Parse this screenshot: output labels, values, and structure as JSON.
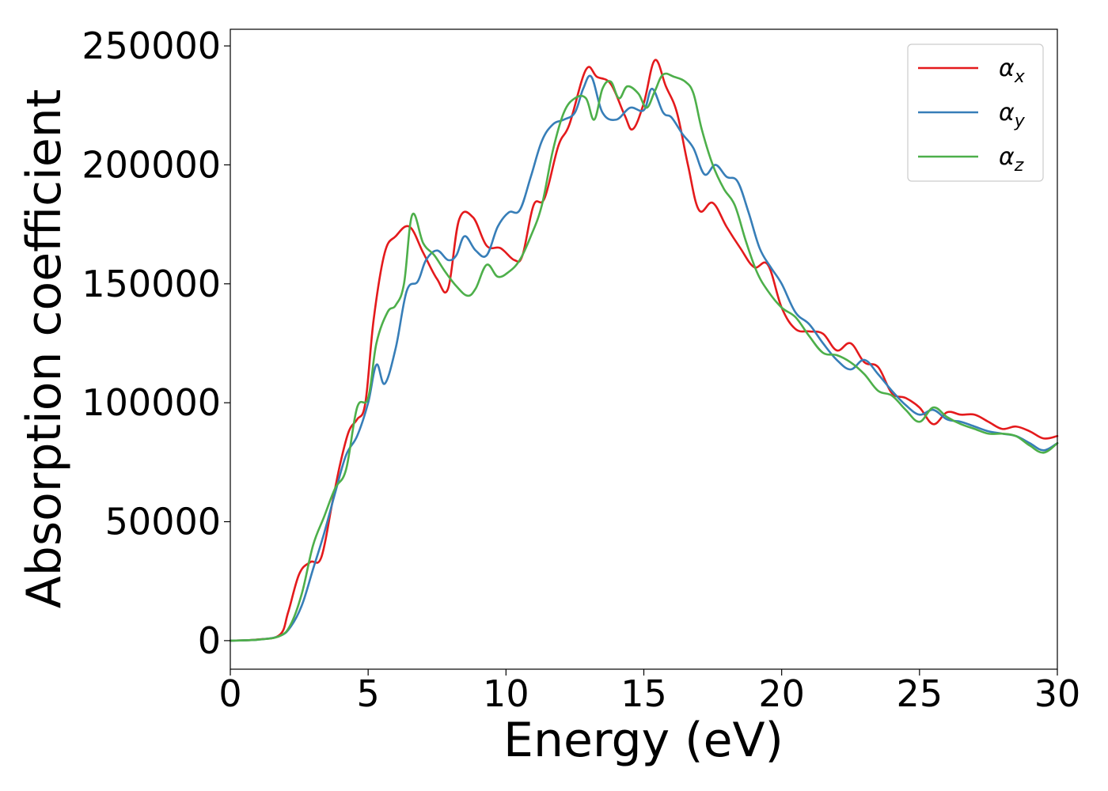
{
  "chart_data": {
    "type": "line",
    "xlabel": "Energy (eV)",
    "ylabel": "Absorption coefficient",
    "xlim": [
      0,
      30
    ],
    "ylim": [
      -12000,
      257000
    ],
    "xticks": [
      "0",
      "5",
      "10",
      "15",
      "20",
      "25",
      "30"
    ],
    "yticks": [
      "0",
      "50000",
      "100000",
      "150000",
      "200000",
      "250000"
    ],
    "grid": false,
    "legend_position": "top-right",
    "series": [
      {
        "name": "α",
        "subscript": "x",
        "color": "#e41a1c",
        "x": [
          0,
          1,
          1.8,
          2.1,
          2.5,
          2.9,
          3.3,
          3.7,
          4.0,
          4.3,
          4.6,
          4.9,
          5.2,
          5.6,
          6.0,
          6.5,
          7.0,
          7.5,
          7.9,
          8.3,
          8.8,
          9.3,
          9.8,
          10.3,
          10.6,
          11.0,
          11.4,
          11.9,
          12.3,
          12.9,
          13.3,
          13.8,
          14.3,
          14.6,
          15.0,
          15.4,
          15.8,
          16.2,
          16.6,
          17.0,
          17.5,
          18.0,
          18.5,
          19.0,
          19.5,
          20.0,
          20.5,
          21.0,
          21.5,
          22.0,
          22.5,
          23.0,
          23.5,
          24.0,
          24.5,
          25.0,
          25.5,
          26.0,
          26.5,
          27.0,
          27.5,
          28.0,
          28.5,
          29.0,
          29.5,
          30.0
        ],
        "y": [
          0,
          500,
          2500,
          12000,
          28000,
          33000,
          35000,
          58000,
          75000,
          88000,
          93000,
          100000,
          135000,
          163000,
          170000,
          174000,
          163000,
          152000,
          148000,
          177000,
          178000,
          166000,
          165000,
          160000,
          162000,
          183000,
          186000,
          208000,
          217000,
          240000,
          237000,
          234000,
          221000,
          215000,
          226000,
          244000,
          233000,
          222000,
          200000,
          181000,
          184000,
          174000,
          165000,
          157000,
          158000,
          140000,
          131000,
          130000,
          129000,
          122000,
          125000,
          117000,
          115000,
          104000,
          102000,
          98000,
          91000,
          96000,
          95000,
          95000,
          92000,
          89000,
          90000,
          88000,
          85000,
          86000
        ]
      },
      {
        "name": "α",
        "subscript": "y",
        "color": "#377eb8",
        "x": [
          0,
          1,
          1.8,
          2.2,
          2.6,
          3.0,
          3.4,
          3.8,
          4.2,
          4.6,
          5.0,
          5.3,
          5.6,
          6.0,
          6.4,
          6.8,
          7.1,
          7.5,
          7.9,
          8.2,
          8.5,
          8.9,
          9.3,
          9.7,
          10.1,
          10.5,
          10.9,
          11.3,
          11.7,
          12.1,
          12.5,
          12.8,
          13.1,
          13.5,
          14.0,
          14.5,
          15.0,
          15.3,
          15.7,
          16.0,
          16.4,
          16.8,
          17.2,
          17.6,
          18.0,
          18.4,
          18.8,
          19.2,
          19.6,
          20.0,
          20.5,
          21.0,
          21.5,
          22.0,
          22.5,
          23.0,
          23.5,
          24.0,
          24.5,
          25.0,
          25.5,
          26.0,
          26.5,
          27.0,
          27.5,
          28.0,
          28.5,
          29.0,
          29.5,
          30.0
        ],
        "y": [
          0,
          400,
          2000,
          6000,
          15000,
          30000,
          45000,
          62000,
          78000,
          86000,
          100000,
          116000,
          108000,
          123000,
          147000,
          151000,
          160000,
          164000,
          160000,
          162000,
          170000,
          164000,
          162000,
          174000,
          180000,
          181000,
          195000,
          210000,
          217000,
          219000,
          222000,
          232000,
          237000,
          222000,
          219000,
          224000,
          223000,
          232000,
          222000,
          220000,
          213000,
          207000,
          196000,
          200000,
          195000,
          193000,
          180000,
          165000,
          157000,
          150000,
          138000,
          133000,
          125000,
          118000,
          114000,
          118000,
          112000,
          105000,
          99000,
          95000,
          97000,
          93000,
          92000,
          90000,
          88000,
          87000,
          86000,
          83000,
          80000,
          83000
        ]
      },
      {
        "name": "α",
        "subscript": "z",
        "color": "#4daf4a",
        "x": [
          0,
          1,
          1.8,
          2.2,
          2.6,
          3.0,
          3.4,
          3.8,
          4.2,
          4.6,
          5.0,
          5.3,
          5.7,
          6.0,
          6.3,
          6.6,
          7.0,
          7.4,
          7.8,
          8.2,
          8.6,
          8.9,
          9.3,
          9.7,
          10.1,
          10.5,
          10.9,
          11.3,
          11.7,
          12.1,
          12.5,
          12.9,
          13.2,
          13.5,
          13.8,
          14.1,
          14.4,
          14.8,
          15.1,
          15.4,
          15.7,
          16.1,
          16.5,
          16.8,
          17.1,
          17.5,
          17.9,
          18.3,
          18.7,
          19.1,
          19.5,
          20.0,
          20.5,
          21.0,
          21.5,
          22.0,
          22.5,
          23.0,
          23.5,
          24.0,
          24.5,
          25.0,
          25.5,
          26.0,
          26.5,
          27.0,
          27.5,
          28.0,
          28.5,
          29.0,
          29.5,
          30.0
        ],
        "y": [
          0,
          400,
          2000,
          7000,
          20000,
          40000,
          52000,
          64000,
          72000,
          98000,
          102000,
          125000,
          138000,
          141000,
          150000,
          179000,
          167000,
          162000,
          155000,
          149000,
          145000,
          148000,
          158000,
          153000,
          155000,
          160000,
          170000,
          183000,
          206000,
          222000,
          228000,
          228000,
          219000,
          232000,
          235000,
          228000,
          233000,
          230000,
          224000,
          231000,
          238000,
          237000,
          235000,
          230000,
          215000,
          200000,
          190000,
          183000,
          168000,
          155000,
          147000,
          140000,
          136000,
          128000,
          121000,
          120000,
          117000,
          112000,
          105000,
          103000,
          97000,
          92000,
          98000,
          94000,
          91000,
          89000,
          87000,
          87000,
          86000,
          82000,
          79000,
          83000
        ]
      }
    ]
  }
}
